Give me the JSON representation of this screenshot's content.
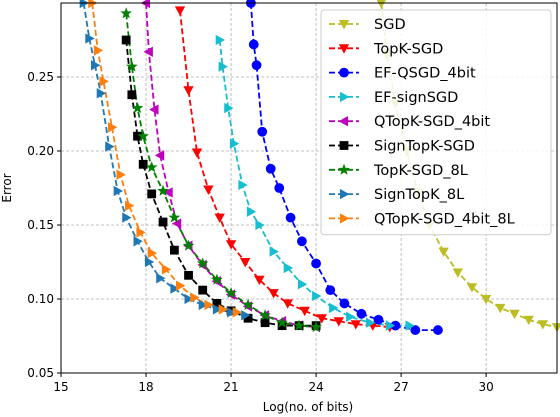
{
  "chart_data": {
    "type": "line",
    "title": "",
    "xlabel": "Log(no. of bits)",
    "ylabel": "Error",
    "xlim": [
      15,
      32.5
    ],
    "ylim": [
      0.05,
      0.3
    ],
    "xticks": [
      15,
      18,
      21,
      24,
      27,
      30
    ],
    "yticks": [
      0.05,
      0.1,
      0.15,
      0.2,
      0.25
    ],
    "xtick_labels": [
      "15",
      "18",
      "21",
      "24",
      "27",
      "30"
    ],
    "ytick_labels": [
      "0.05",
      "0.10",
      "0.15",
      "0.20",
      "0.25"
    ],
    "grid": true,
    "legend_position": "upper right",
    "series": [
      {
        "name": "SGD",
        "color": "#bcbd22",
        "marker": "tri-down",
        "x": [
          26.3,
          26.5,
          26.8,
          27.2,
          27.6,
          28.0,
          28.5,
          29.0,
          29.5,
          30.0,
          30.5,
          31.0,
          31.5,
          32.0,
          32.5
        ],
        "y": [
          0.3,
          0.265,
          0.232,
          0.2,
          0.172,
          0.15,
          0.132,
          0.118,
          0.108,
          0.1,
          0.094,
          0.09,
          0.086,
          0.083,
          0.081
        ]
      },
      {
        "name": "TopK-SGD",
        "color": "#ff0000",
        "marker": "tri-down",
        "x": [
          19.2,
          19.5,
          19.8,
          20.2,
          20.6,
          21.0,
          21.5,
          22.0,
          22.5,
          23.0,
          23.6,
          24.2,
          24.8,
          25.4,
          26.0,
          26.6
        ],
        "y": [
          0.295,
          0.241,
          0.199,
          0.174,
          0.155,
          0.137,
          0.125,
          0.113,
          0.104,
          0.097,
          0.092,
          0.087,
          0.085,
          0.083,
          0.082,
          0.081
        ]
      },
      {
        "name": "EF-QSGD_4bit",
        "color": "#0000ff",
        "marker": "circle",
        "x": [
          21.7,
          21.8,
          21.9,
          22.1,
          22.4,
          22.7,
          23.1,
          23.5,
          24.0,
          24.5,
          25.0,
          25.6,
          26.2,
          26.8,
          27.5,
          28.3
        ],
        "y": [
          0.3,
          0.272,
          0.258,
          0.213,
          0.188,
          0.175,
          0.155,
          0.139,
          0.124,
          0.106,
          0.097,
          0.09,
          0.086,
          0.082,
          0.079,
          0.079
        ]
      },
      {
        "name": "EF-signSGD",
        "color": "#17becf",
        "marker": "tri-right",
        "x": [
          20.6,
          20.7,
          20.9,
          21.1,
          21.4,
          21.7,
          22.0,
          22.5,
          23.0,
          23.5,
          24.0,
          24.6,
          25.2,
          25.9,
          26.6,
          27.3
        ],
        "y": [
          0.275,
          0.257,
          0.229,
          0.205,
          0.177,
          0.159,
          0.15,
          0.132,
          0.121,
          0.11,
          0.102,
          0.094,
          0.088,
          0.084,
          0.082,
          0.082
        ]
      },
      {
        "name": "QTopK-SGD_4bit",
        "color": "#bf00bf",
        "marker": "tri-left",
        "x": [
          18.0,
          18.1,
          18.3,
          18.5,
          18.8,
          19.1,
          19.5,
          20.0,
          20.5,
          21.0,
          21.6,
          22.2,
          22.8,
          23.4,
          24.0
        ],
        "y": [
          0.3,
          0.267,
          0.228,
          0.197,
          0.172,
          0.151,
          0.136,
          0.123,
          0.112,
          0.103,
          0.095,
          0.089,
          0.085,
          0.082,
          0.081
        ]
      },
      {
        "name": "SignTopK-SGD",
        "color": "#000000",
        "marker": "square",
        "x": [
          17.3,
          17.5,
          17.7,
          17.9,
          18.2,
          18.6,
          19.0,
          19.5,
          20.0,
          20.5,
          21.0,
          21.6,
          22.2,
          22.8,
          23.4,
          24.0
        ],
        "y": [
          0.275,
          0.238,
          0.21,
          0.191,
          0.171,
          0.152,
          0.133,
          0.116,
          0.106,
          0.097,
          0.092,
          0.087,
          0.084,
          0.082,
          0.082,
          0.082
        ]
      },
      {
        "name": "TopK-SGD_8L",
        "color": "#008000",
        "marker": "star",
        "x": [
          17.3,
          17.5,
          17.7,
          17.9,
          18.2,
          18.6,
          19.0,
          19.5,
          20.0,
          20.5,
          21.0,
          21.6,
          22.2,
          22.8,
          23.4,
          24.0
        ],
        "y": [
          0.293,
          0.257,
          0.229,
          0.21,
          0.189,
          0.173,
          0.155,
          0.136,
          0.124,
          0.113,
          0.104,
          0.096,
          0.089,
          0.084,
          0.082,
          0.081
        ]
      },
      {
        "name": "SignTopK_8L",
        "color": "#1f77b4",
        "marker": "tri-right",
        "x": [
          15.8,
          16.0,
          16.2,
          16.4,
          16.7,
          17.0,
          17.3,
          17.7,
          18.1,
          18.5,
          19.0,
          19.5,
          20.0,
          20.5,
          21.0,
          21.5
        ],
        "y": [
          0.3,
          0.276,
          0.258,
          0.239,
          0.203,
          0.173,
          0.155,
          0.139,
          0.125,
          0.114,
          0.107,
          0.1,
          0.096,
          0.093,
          0.091,
          0.089
        ]
      },
      {
        "name": "QTopK-SGD_4bit_8L",
        "color": "#ff7f0e",
        "marker": "tri-right",
        "x": [
          16.1,
          16.3,
          16.5,
          16.8,
          17.1,
          17.4,
          17.8,
          18.2,
          18.7,
          19.2,
          19.7,
          20.2,
          20.7,
          21.2
        ],
        "y": [
          0.3,
          0.268,
          0.247,
          0.216,
          0.184,
          0.163,
          0.145,
          0.131,
          0.12,
          0.109,
          0.101,
          0.096,
          0.093,
          0.091
        ]
      }
    ]
  }
}
